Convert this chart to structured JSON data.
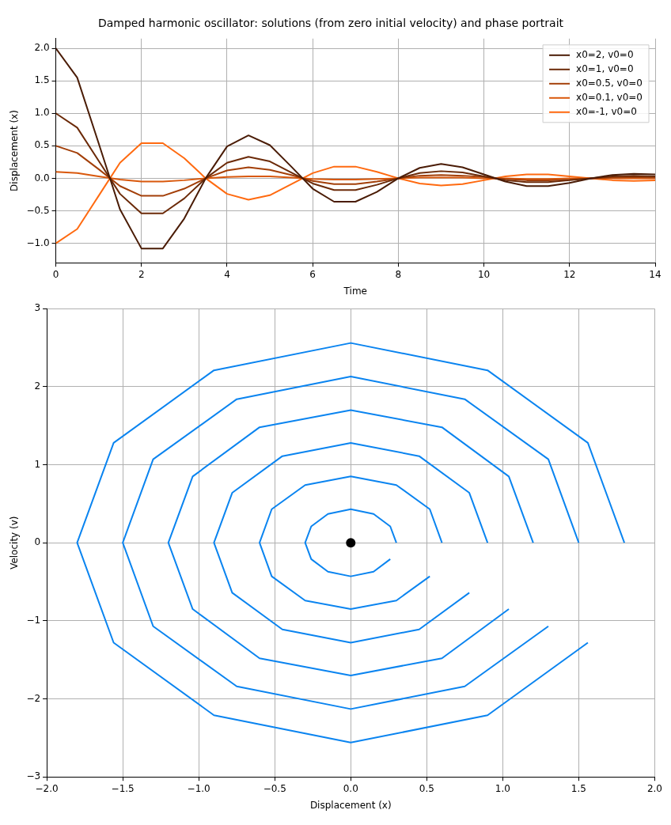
{
  "chart_data": [
    {
      "type": "line",
      "title": "Damped harmonic oscillator: solutions (from zero initial velocity) and phase portrait",
      "xlabel": "Time",
      "ylabel": "Displacement (x)",
      "legend": "top right",
      "grid": true,
      "x": [
        0,
        0.5,
        1,
        1.5,
        2,
        2.5,
        3,
        3.5,
        4,
        4.5,
        5,
        5.5,
        6,
        6.5,
        7,
        7.5,
        8,
        8.5,
        9,
        9.5,
        10,
        10.5,
        11,
        11.5,
        12,
        12.5,
        13,
        13.5,
        14
      ],
      "series": [
        {
          "name": "x0=2, v0=0",
          "color": "#4a1c06",
          "values": [
            2,
            1.55,
            0.54,
            -0.48,
            -1.08,
            -1.08,
            -0.62,
            0,
            0.49,
            0.66,
            0.51,
            0.18,
            -0.16,
            -0.36,
            -0.36,
            -0.21,
            0,
            0.16,
            0.22,
            0.17,
            0.06,
            -0.05,
            -0.12,
            -0.12,
            -0.07,
            0,
            0.05,
            0.07,
            0.06
          ]
        },
        {
          "name": "x0=1, v0=0",
          "color": "#6b2a08",
          "values": [
            1,
            0.78,
            0.27,
            -0.24,
            -0.54,
            -0.54,
            -0.31,
            0,
            0.24,
            0.33,
            0.26,
            0.09,
            -0.08,
            -0.18,
            -0.18,
            -0.1,
            0,
            0.08,
            0.11,
            0.09,
            0.03,
            -0.03,
            -0.06,
            -0.06,
            -0.03,
            0,
            0.03,
            0.04,
            0.03
          ]
        },
        {
          "name": "x0=0.5, v0=0",
          "color": "#a33f08",
          "values": [
            0.5,
            0.39,
            0.14,
            -0.12,
            -0.27,
            -0.27,
            -0.16,
            0,
            0.12,
            0.17,
            0.13,
            0.05,
            -0.04,
            -0.09,
            -0.09,
            -0.05,
            0,
            0.04,
            0.05,
            0.04,
            0.02,
            -0.01,
            -0.03,
            -0.03,
            -0.02,
            0,
            0.01,
            0.02,
            0.01
          ]
        },
        {
          "name": "x0=0.1, v0=0",
          "color": "#d9580c",
          "values": [
            0.1,
            0.08,
            0.03,
            -0.02,
            -0.05,
            -0.05,
            -0.03,
            0,
            0.02,
            0.03,
            0.03,
            0.01,
            -0.01,
            -0.02,
            -0.02,
            -0.01,
            0,
            0.01,
            0.01,
            0.01,
            0,
            0,
            -0.01,
            -0.01,
            0,
            0,
            0,
            0,
            0
          ]
        },
        {
          "name": "x0=-1, v0=0",
          "color": "#ff6a10",
          "values": [
            -1,
            -0.78,
            -0.27,
            0.24,
            0.54,
            0.54,
            0.31,
            0,
            -0.24,
            -0.33,
            -0.26,
            -0.09,
            0.08,
            0.18,
            0.18,
            0.1,
            0,
            -0.08,
            -0.11,
            -0.09,
            -0.03,
            0.03,
            0.06,
            0.06,
            0.03,
            0,
            -0.03,
            -0.04,
            -0.03
          ]
        }
      ],
      "xlim": [
        0,
        14
      ],
      "xticks": [
        0,
        2,
        4,
        6,
        8,
        10,
        12,
        14
      ],
      "ylim": [
        -1.3,
        2.15
      ],
      "yticks": [
        {
          "value": -1,
          "label": "−1.0"
        },
        {
          "value": -0.5,
          "label": "−0.5"
        },
        {
          "value": 0,
          "label": "0.0"
        },
        {
          "value": 0.5,
          "label": "0.5"
        },
        {
          "value": 1,
          "label": "1.0"
        },
        {
          "value": 1.5,
          "label": "1.5"
        },
        {
          "value": 2,
          "label": "2.0"
        }
      ]
    },
    {
      "type": "line",
      "xlabel": "Displacement (x)",
      "ylabel": "Velocity (v)",
      "grid": true,
      "series": [
        {
          "color": "#0a84f0",
          "x": [
            0.3,
            0.26,
            0.15,
            0,
            -0.15,
            -0.26,
            -0.3,
            -0.26,
            -0.15,
            0,
            0.15,
            0.26
          ],
          "values": [
            0,
            0.21,
            0.37,
            0.43,
            0.37,
            0.21,
            0,
            -0.21,
            -0.37,
            -0.43,
            -0.37,
            -0.21
          ]
        },
        {
          "color": "#0a84f0",
          "x": [
            0.6,
            0.52,
            0.3,
            0,
            -0.3,
            -0.52,
            -0.6,
            -0.52,
            -0.3,
            0,
            0.3,
            0.52
          ],
          "values": [
            0,
            0.43,
            0.74,
            0.85,
            0.74,
            0.43,
            0,
            -0.43,
            -0.74,
            -0.85,
            -0.74,
            -0.43
          ]
        },
        {
          "color": "#0a84f0",
          "x": [
            0.9,
            0.78,
            0.45,
            0,
            -0.45,
            -0.78,
            -0.9,
            -0.78,
            -0.45,
            0,
            0.45,
            0.78
          ],
          "values": [
            0,
            0.64,
            1.11,
            1.28,
            1.11,
            0.64,
            0,
            -0.64,
            -1.11,
            -1.28,
            -1.11,
            -0.64
          ]
        },
        {
          "color": "#0a84f0",
          "x": [
            1.2,
            1.04,
            0.6,
            0,
            -0.6,
            -1.04,
            -1.2,
            -1.04,
            -0.6,
            0,
            0.6,
            1.04
          ],
          "values": [
            0,
            0.85,
            1.48,
            1.7,
            1.48,
            0.85,
            0,
            -0.85,
            -1.48,
            -1.7,
            -1.48,
            -0.85
          ]
        },
        {
          "color": "#0a84f0",
          "x": [
            1.5,
            1.3,
            0.75,
            0,
            -0.75,
            -1.3,
            -1.5,
            -1.3,
            -0.75,
            0,
            0.75,
            1.3
          ],
          "values": [
            0,
            1.07,
            1.84,
            2.13,
            1.84,
            1.07,
            0,
            -1.07,
            -1.84,
            -2.13,
            -1.84,
            -1.07
          ]
        },
        {
          "color": "#0a84f0",
          "x": [
            1.8,
            1.56,
            0.9,
            0,
            -0.9,
            -1.56,
            -1.8,
            -1.56,
            -0.9,
            0,
            0.9,
            1.56
          ],
          "values": [
            0,
            1.28,
            2.21,
            2.56,
            2.21,
            1.28,
            0,
            -1.28,
            -2.21,
            -2.56,
            -2.21,
            -1.28
          ]
        },
        {
          "type": "scatter",
          "color": "#000000",
          "x": [
            0
          ],
          "values": [
            0
          ]
        }
      ],
      "xlim": [
        -2,
        2
      ],
      "xticks": [
        {
          "value": -2,
          "label": "−2.0"
        },
        {
          "value": -1.5,
          "label": "−1.5"
        },
        {
          "value": -1,
          "label": "−1.0"
        },
        {
          "value": -0.5,
          "label": "−0.5"
        },
        {
          "value": 0,
          "label": "0.0"
        },
        {
          "value": 0.5,
          "label": "0.5"
        },
        {
          "value": 1,
          "label": "1.0"
        },
        {
          "value": 1.5,
          "label": "1.5"
        },
        {
          "value": 2,
          "label": "2.0"
        }
      ],
      "ylim": [
        -3,
        3
      ],
      "yticks": [
        {
          "value": -3,
          "label": "−3"
        },
        {
          "value": -2,
          "label": "−2"
        },
        {
          "value": -1,
          "label": "−1"
        },
        {
          "value": 0,
          "label": "0"
        },
        1,
        2,
        3
      ]
    }
  ]
}
